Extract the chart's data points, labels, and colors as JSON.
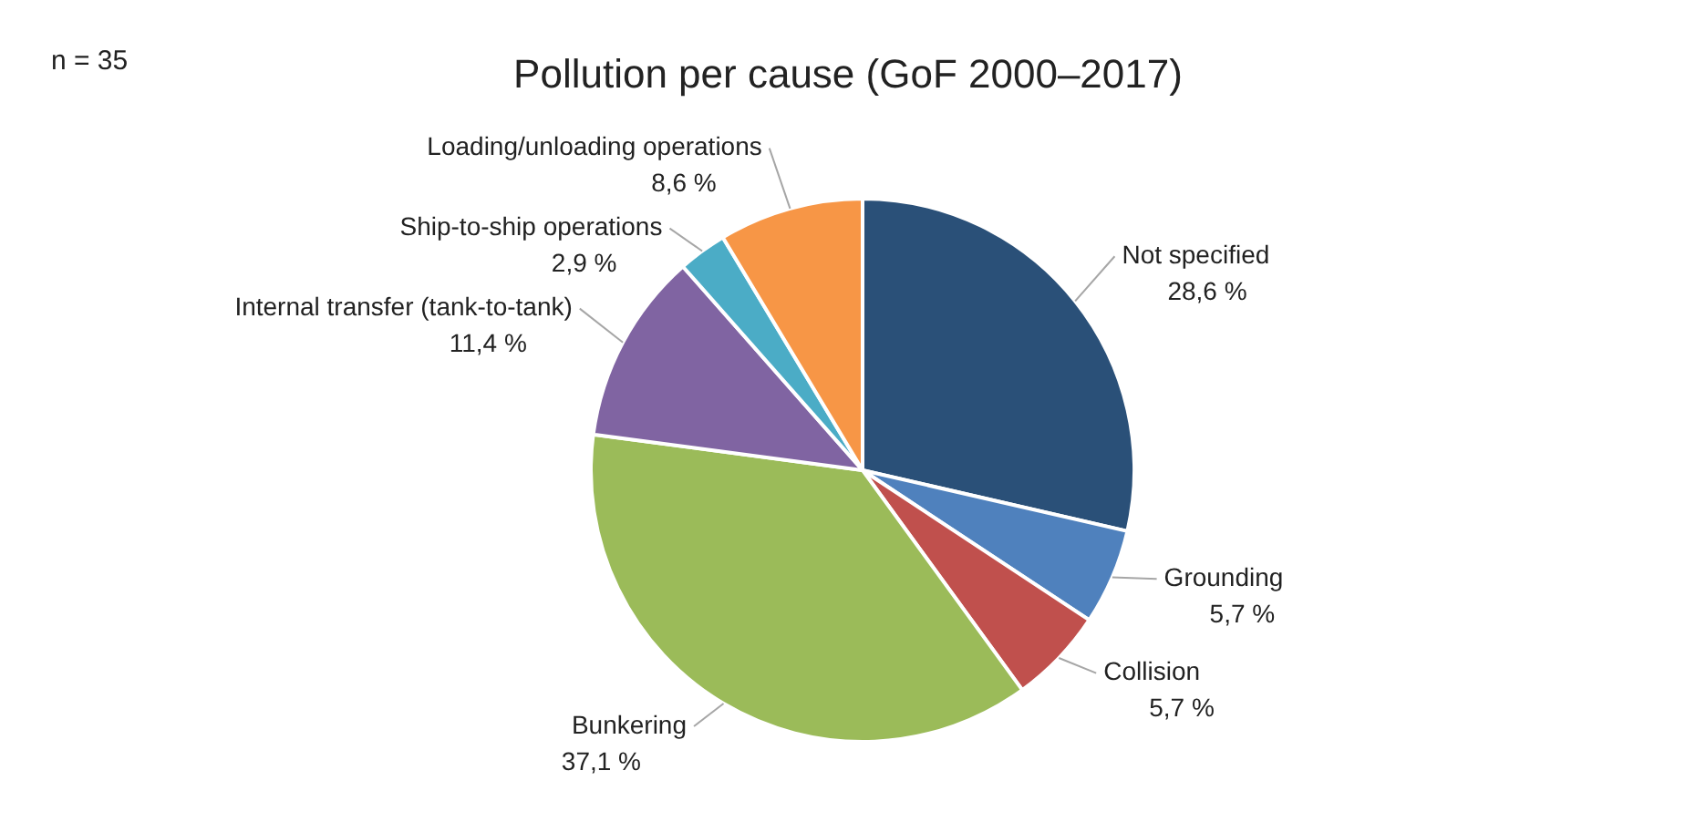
{
  "chart_data": {
    "type": "pie",
    "title": "Pollution per cause (GoF 2000–2017)",
    "annotations": [
      "n = 35"
    ],
    "categories": [
      "Not specified",
      "Grounding",
      "Collision",
      "Bunkering",
      "Internal transfer (tank-to-tank)",
      "Ship-to-ship operations",
      "Loading/unloading operations"
    ],
    "values": [
      28.6,
      5.7,
      5.7,
      37.1,
      11.4,
      2.9,
      8.6
    ],
    "value_labels": [
      "28,6 %",
      "5,7 %",
      "5,7 %",
      "37,1 %",
      "11,4 %",
      "2,9 %",
      "8,6 %"
    ],
    "colors": [
      "#2a5078",
      "#4f81bd",
      "#c0504d",
      "#9bbb59",
      "#8064a2",
      "#4bacc6",
      "#f79646"
    ],
    "legend": false
  }
}
